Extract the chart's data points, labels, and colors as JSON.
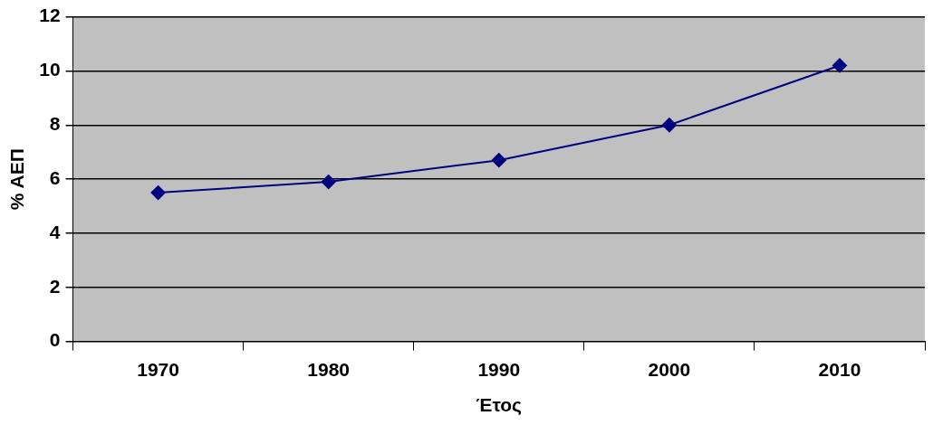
{
  "chart_data": {
    "type": "line",
    "xlabel": "Έτος",
    "ylabel": "% ΑΕΠ",
    "categories": [
      "1970",
      "1980",
      "1990",
      "2000",
      "2010"
    ],
    "series": [
      {
        "color": "#000080",
        "values": [
          5.5,
          5.9,
          6.7,
          8.0,
          10.2
        ]
      }
    ],
    "ylim": [
      0,
      12
    ],
    "yticks": [
      0,
      2,
      4,
      6,
      8,
      10,
      12
    ],
    "grid": "y",
    "legend": false,
    "marker": "diamond",
    "line_style": "solid"
  }
}
